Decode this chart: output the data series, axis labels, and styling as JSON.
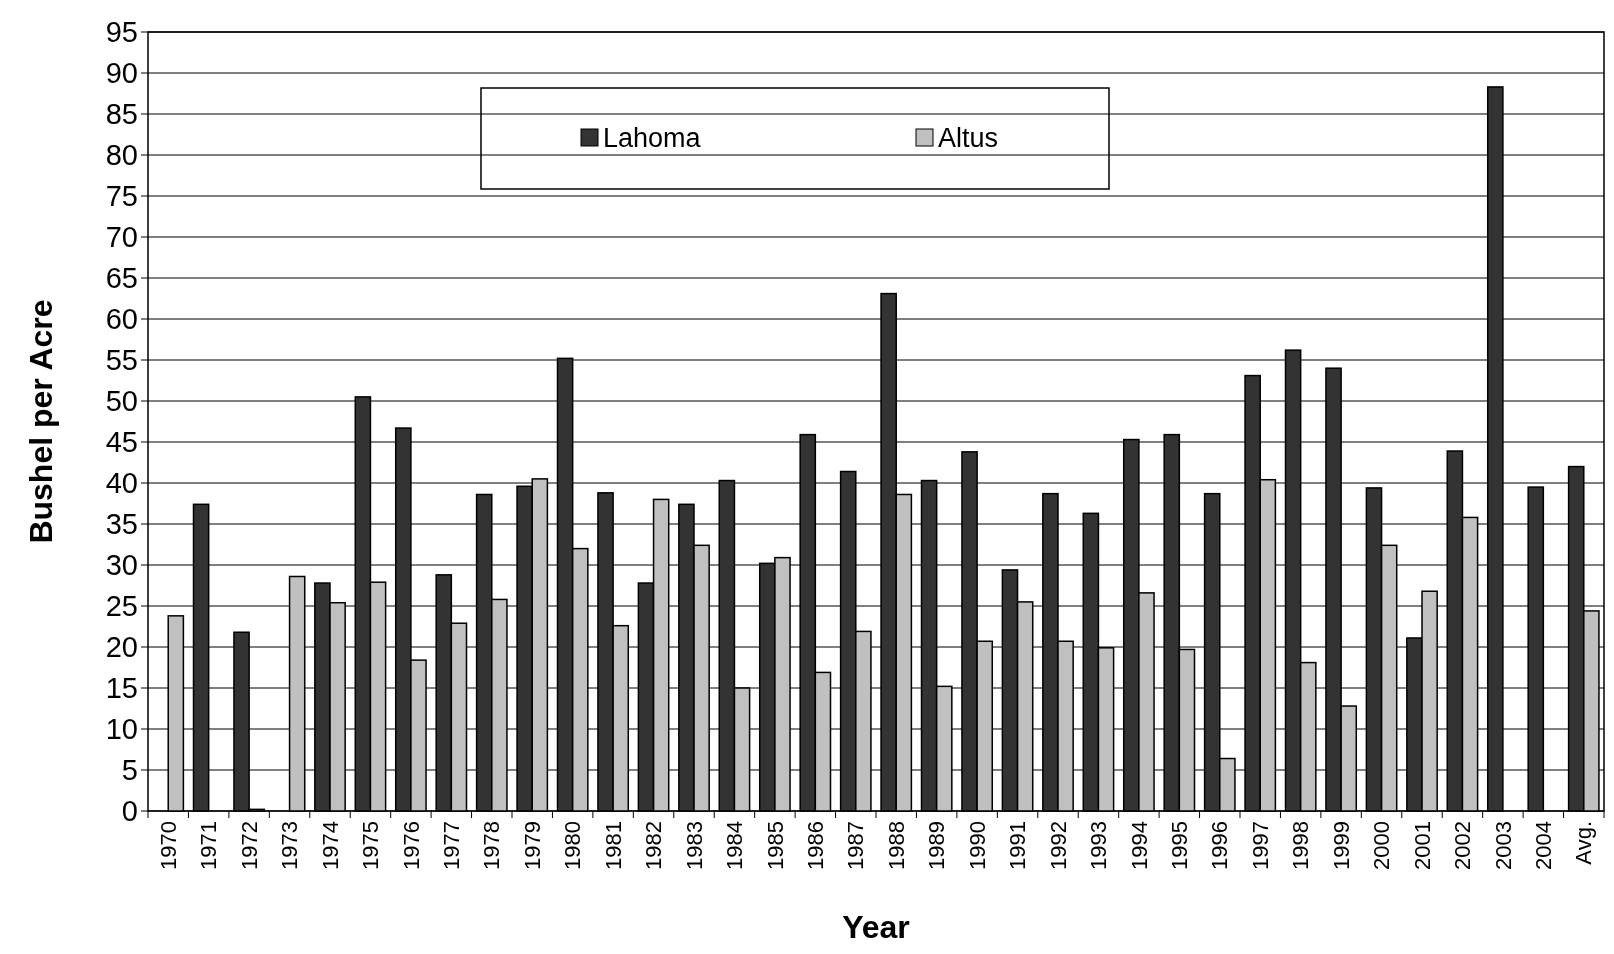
{
  "chart_data": {
    "type": "bar",
    "xlabel": "Year",
    "ylabel": "Bushel per Acre",
    "categories": [
      "1970",
      "1971",
      "1972",
      "1973",
      "1974",
      "1975",
      "1976",
      "1977",
      "1978",
      "1979",
      "1980",
      "1981",
      "1982",
      "1983",
      "1984",
      "1985",
      "1986",
      "1987",
      "1988",
      "1989",
      "1990",
      "1991",
      "1992",
      "1993",
      "1994",
      "1995",
      "1996",
      "1997",
      "1998",
      "1999",
      "2000",
      "2001",
      "2002",
      "2003",
      "2004",
      "Avg."
    ],
    "series": [
      {
        "name": "Lahoma",
        "color": "#333333",
        "values": [
          null,
          37.4,
          21.8,
          null,
          27.8,
          50.5,
          46.7,
          28.8,
          38.6,
          39.6,
          55.2,
          38.8,
          27.8,
          37.4,
          40.3,
          30.2,
          45.9,
          41.4,
          63.1,
          40.3,
          43.8,
          29.4,
          38.7,
          36.3,
          45.3,
          45.9,
          38.7,
          53.1,
          56.2,
          54.0,
          39.4,
          21.1,
          43.9,
          88.3,
          39.5,
          42.0
        ]
      },
      {
        "name": "Altus",
        "color": "#c0c0c0",
        "values": [
          23.8,
          null,
          0.2,
          28.6,
          25.4,
          27.9,
          18.4,
          22.9,
          25.8,
          40.5,
          32.0,
          22.6,
          38.0,
          32.4,
          15.0,
          30.9,
          16.9,
          21.9,
          38.6,
          15.2,
          20.7,
          25.5,
          20.7,
          19.9,
          26.6,
          19.7,
          6.4,
          40.4,
          18.1,
          12.8,
          32.4,
          26.8,
          35.8,
          null,
          null,
          24.4
        ]
      }
    ],
    "ylim": [
      0,
      95
    ],
    "yticks": [
      0,
      5,
      10,
      15,
      20,
      25,
      30,
      35,
      40,
      45,
      50,
      55,
      60,
      65,
      70,
      75,
      80,
      85,
      90,
      95
    ],
    "grid": "y",
    "legend": "top"
  }
}
